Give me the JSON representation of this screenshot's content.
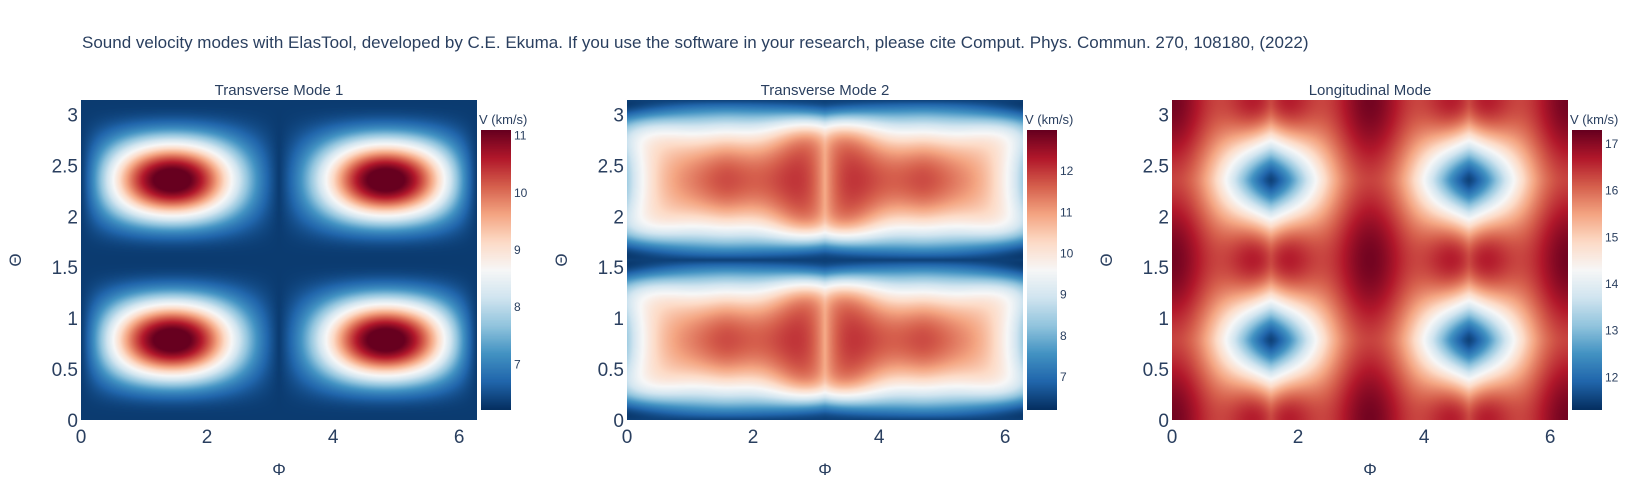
{
  "title": "Sound velocity modes with ElasTool, developed by C.E. Ekuma. If you use the software in your research, please cite Comput. Phys. Commun. 270, 108180, (2022)",
  "chart_data": [
    {
      "type": "heatmap",
      "title": "Transverse Mode 1",
      "xlabel": "Φ",
      "ylabel": "Θ",
      "xlim": [
        0,
        6.283
      ],
      "ylim": [
        0,
        3.1416
      ],
      "xticks": [
        0,
        2,
        4,
        6
      ],
      "yticks": [
        0,
        0.5,
        1,
        1.5,
        2,
        2.5,
        3
      ],
      "colorscale": "RdBu_r",
      "colorbar": {
        "title": "V (km/s)",
        "range": [
          6.2,
          11.1
        ],
        "ticks": [
          7,
          8,
          9,
          10,
          11
        ]
      }
    },
    {
      "type": "heatmap",
      "title": "Transverse Mode 2",
      "xlabel": "Φ",
      "ylabel": "Θ",
      "xlim": [
        0,
        6.283
      ],
      "ylim": [
        0,
        3.1416
      ],
      "xticks": [
        0,
        2,
        4,
        6
      ],
      "yticks": [
        0,
        0.5,
        1,
        1.5,
        2,
        2.5,
        3
      ],
      "colorscale": "RdBu_r",
      "colorbar": {
        "title": "V (km/s)",
        "range": [
          6.2,
          13.0
        ],
        "ticks": [
          7,
          8,
          9,
          10,
          11,
          12
        ]
      }
    },
    {
      "type": "heatmap",
      "title": "Longitudinal Mode",
      "xlabel": "Φ",
      "ylabel": "Θ",
      "xlim": [
        0,
        6.283
      ],
      "ylim": [
        0,
        3.1416
      ],
      "xticks": [
        0,
        2,
        4,
        6
      ],
      "yticks": [
        0,
        0.5,
        1,
        1.5,
        2,
        2.5,
        3
      ],
      "colorscale": "RdBu_r",
      "colorbar": {
        "title": "V (km/s)",
        "range": [
          11.3,
          17.3
        ],
        "ticks": [
          12,
          13,
          14,
          15,
          16,
          17
        ]
      }
    }
  ],
  "colors": {
    "scale": [
      "#053061",
      "#2166ac",
      "#4393c3",
      "#92c5de",
      "#d1e5f0",
      "#f7f7f7",
      "#fddbc7",
      "#f4a582",
      "#d6604d",
      "#b2182b",
      "#67001f"
    ],
    "text": "#2a3f5f"
  }
}
